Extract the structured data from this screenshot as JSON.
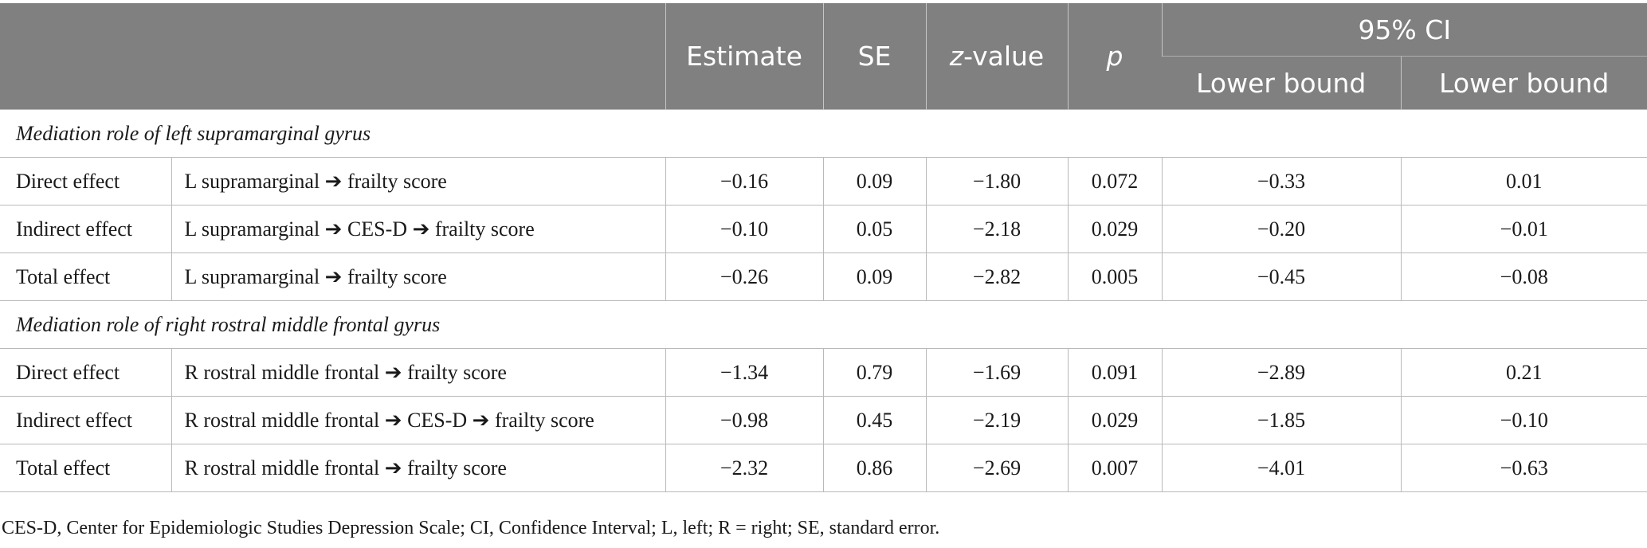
{
  "header": {
    "estimate": "Estimate",
    "se": "SE",
    "z_value_italic": "z",
    "z_value_rest": "-value",
    "p": "p",
    "ci": "95% CI",
    "lower_bound_1": "Lower bound",
    "lower_bound_2": "Lower bound"
  },
  "sections": [
    {
      "title": "Mediation role of left supramarginal gyrus",
      "rows": [
        {
          "label": "Direct effect",
          "path": "L supramarginal ➔ frailty score",
          "estimate": "−0.16",
          "se": "0.09",
          "z": "−1.80",
          "p": "0.072",
          "lower1": "−0.33",
          "lower2": "0.01"
        },
        {
          "label": "Indirect effect",
          "path": "L supramarginal ➔ CES-D ➔ frailty score",
          "estimate": "−0.10",
          "se": "0.05",
          "z": "−2.18",
          "p": "0.029",
          "lower1": "−0.20",
          "lower2": "−0.01"
        },
        {
          "label": "Total effect",
          "path": "L supramarginal ➔ frailty score",
          "estimate": "−0.26",
          "se": "0.09",
          "z": "−2.82",
          "p": "0.005",
          "lower1": "−0.45",
          "lower2": "−0.08"
        }
      ]
    },
    {
      "title": "Mediation role of right rostral middle frontal gyrus",
      "rows": [
        {
          "label": "Direct effect",
          "path": "R rostral middle frontal ➔ frailty score",
          "estimate": "−1.34",
          "se": "0.79",
          "z": "−1.69",
          "p": "0.091",
          "lower1": "−2.89",
          "lower2": "0.21"
        },
        {
          "label": "Indirect effect",
          "path": "R rostral middle frontal ➔ CES-D ➔ frailty score",
          "estimate": "−0.98",
          "se": "0.45",
          "z": "−2.19",
          "p": "0.029",
          "lower1": "−1.85",
          "lower2": "−0.10"
        },
        {
          "label": "Total effect",
          "path": "R rostral middle frontal ➔ frailty score",
          "estimate": "−2.32",
          "se": "0.86",
          "z": "−2.69",
          "p": "0.007",
          "lower1": "−4.01",
          "lower2": "−0.63"
        }
      ]
    }
  ],
  "footnote": "CES-D, Center for Epidemiologic Studies Depression Scale; CI, Confidence Interval; L, left; R = right; SE, standard error."
}
